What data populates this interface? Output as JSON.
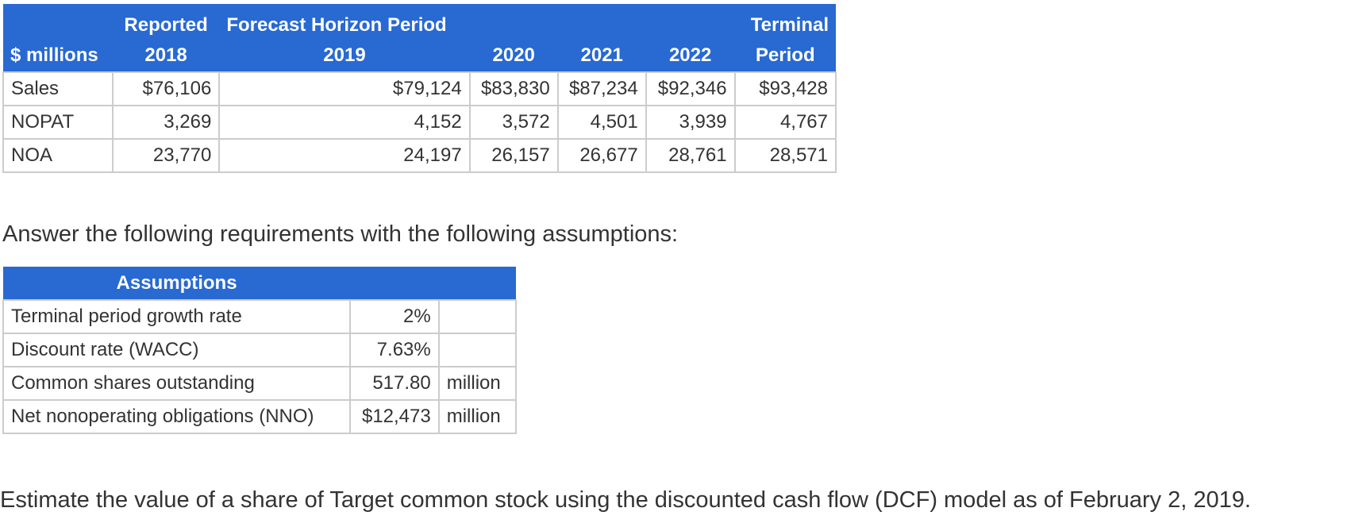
{
  "forecast_table": {
    "header_row1": {
      "col0": "",
      "col1": "Reported",
      "col2": "Forecast Horizon Period",
      "col6": "Terminal"
    },
    "header_row2": {
      "col0": "$ millions",
      "col1": "2018",
      "col2": "2019",
      "col3": "2020",
      "col4": "2021",
      "col5": "2022",
      "col6": "Period"
    },
    "rows": [
      {
        "label": "Sales",
        "values": [
          "$76,106",
          "$79,124",
          "$83,830",
          "$87,234",
          "$92,346",
          "$93,428"
        ]
      },
      {
        "label": "NOPAT",
        "values": [
          "3,269",
          "4,152",
          "3,572",
          "4,501",
          "3,939",
          "4,767"
        ]
      },
      {
        "label": "NOA",
        "values": [
          "23,770",
          "24,197",
          "26,157",
          "26,677",
          "28,761",
          "28,571"
        ]
      }
    ]
  },
  "intro_text": "Answer the following requirements with the following assumptions:",
  "assumptions_table": {
    "header": "Assumptions",
    "rows": [
      {
        "label": "Terminal period growth rate",
        "value": "2%",
        "unit": ""
      },
      {
        "label": "Discount rate (WACC)",
        "value": "7.63%",
        "unit": ""
      },
      {
        "label": "Common shares outstanding",
        "value": "517.80",
        "unit": "million"
      },
      {
        "label": "Net nonoperating obligations (NNO)",
        "value": "$12,473",
        "unit": "million"
      }
    ]
  },
  "question_text": "Estimate the value of a share of Target common stock using the discounted cash flow (DCF) model as of February 2, 2019.",
  "colors": {
    "header_bg": "#2869d2",
    "header_text": "#ffffff",
    "border": "#cccccc",
    "body_text": "#333333"
  }
}
